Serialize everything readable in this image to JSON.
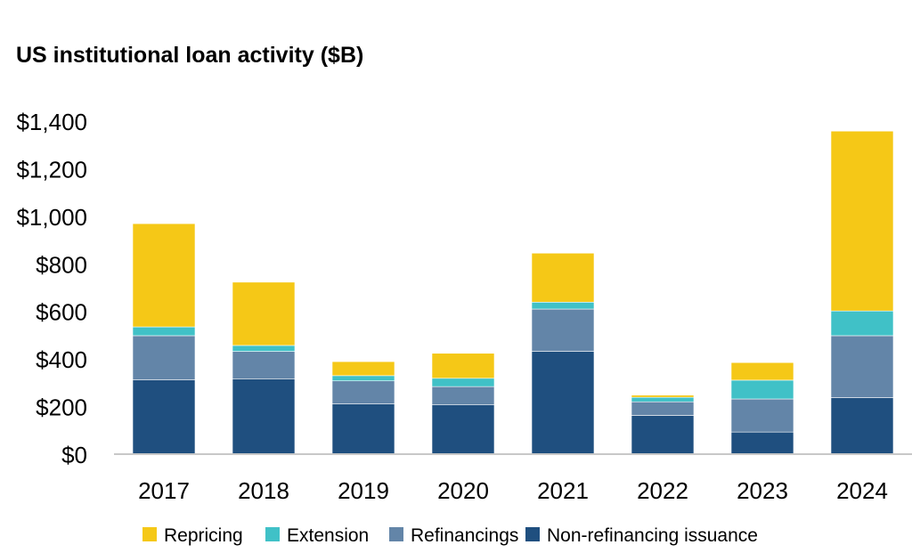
{
  "chart_data": {
    "type": "bar",
    "stacked": true,
    "title": "US institutional loan activity ($B)",
    "xlabel": "",
    "ylabel": "",
    "ylim": [
      0,
      1400
    ],
    "y_ticks": [
      "$0",
      "$200",
      "$400",
      "$600",
      "$800",
      "$1,000",
      "$1,200",
      "$1,400"
    ],
    "y_tick_values": [
      0,
      200,
      400,
      600,
      800,
      1000,
      1200,
      1400
    ],
    "grid": false,
    "legend_position": "bottom",
    "categories": [
      "2017",
      "2018",
      "2019",
      "2020",
      "2021",
      "2022",
      "2023",
      "2024"
    ],
    "series": [
      {
        "name": "Non-refinancing issuance",
        "color": "#1F4F7F",
        "values": [
          313,
          317,
          211,
          207,
          432,
          163,
          93,
          238
        ]
      },
      {
        "name": "Refinancings",
        "color": "#6385A8",
        "values": [
          185,
          115,
          97,
          77,
          178,
          57,
          139,
          260
        ]
      },
      {
        "name": "Extension",
        "color": "#40C1C7",
        "values": [
          37,
          25,
          22,
          35,
          29,
          19,
          79,
          104
        ]
      },
      {
        "name": "Repricing",
        "color": "#F5C817",
        "values": [
          434,
          266,
          59,
          105,
          206,
          9,
          74,
          756
        ]
      }
    ],
    "legend_order": [
      3,
      2,
      1,
      0
    ]
  }
}
